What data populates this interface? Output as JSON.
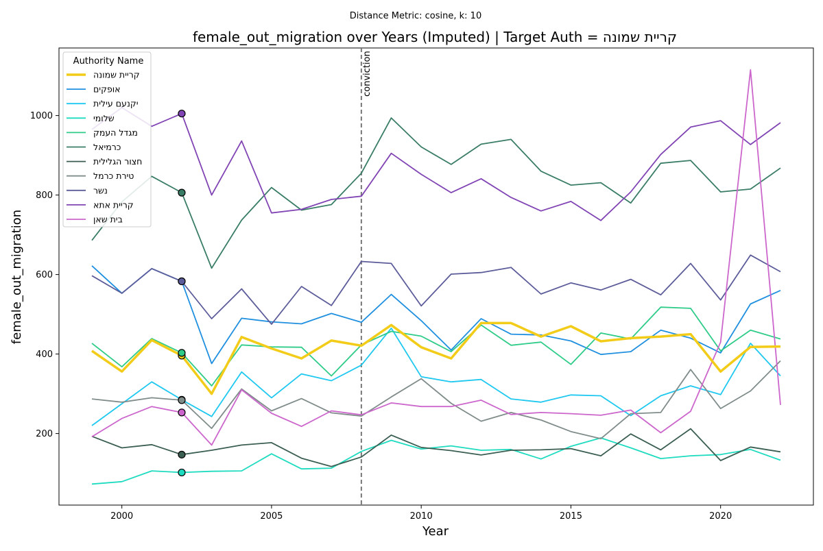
{
  "chart_data": {
    "type": "line",
    "suptitle": "Distance Metric: cosine, k: 10",
    "title": "female_out_migration over Years (Imputed) | Target Auth = קריית שמונה",
    "xlabel": "Year",
    "ylabel": "female_out_migration",
    "xlim": [
      1997.9,
      2023.1
    ],
    "ylim": [
      20,
      1170
    ],
    "xticks": [
      2000,
      2005,
      2010,
      2015,
      2020
    ],
    "yticks": [
      200,
      400,
      600,
      800,
      1000
    ],
    "grid": false,
    "legend": {
      "title": "Authority Name",
      "placement": "upper-left"
    },
    "annotation": {
      "x": 2008,
      "label": "conviction",
      "style": "dashed",
      "color": "#777777"
    },
    "x": [
      1999,
      2000,
      2001,
      2002,
      2003,
      2004,
      2005,
      2006,
      2007,
      2008,
      2009,
      2010,
      2011,
      2012,
      2013,
      2014,
      2015,
      2016,
      2017,
      2018,
      2019,
      2020,
      2021,
      2022
    ],
    "series": [
      {
        "name": "קריית שמונה",
        "color": "#f2cc19",
        "target": true,
        "values": [
          408,
          356,
          435,
          396,
          300,
          443,
          414,
          389,
          434,
          421,
          473,
          417,
          389,
          478,
          478,
          444,
          470,
          432,
          440,
          444,
          450,
          356,
          418,
          419
        ]
      },
      {
        "name": "אופקים",
        "color": "#1f8fe0",
        "values": [
          622,
          553,
          615,
          583,
          376,
          490,
          481,
          476,
          502,
          480,
          550,
          484,
          410,
          489,
          450,
          448,
          433,
          399,
          406,
          460,
          440,
          403,
          526,
          560
        ]
      },
      {
        "name": "יקנעם עילית",
        "color": "#1ec8f0",
        "values": [
          220,
          275,
          330,
          285,
          243,
          355,
          290,
          350,
          333,
          372,
          465,
          343,
          330,
          336,
          287,
          279,
          297,
          295,
          245,
          295,
          320,
          298,
          427,
          345
        ]
      },
      {
        "name": "שלומי",
        "color": "#1ddbbf",
        "values": [
          73,
          79,
          106,
          102,
          105,
          106,
          149,
          111,
          113,
          155,
          183,
          161,
          169,
          158,
          160,
          136,
          168,
          189,
          164,
          137,
          144,
          147,
          160,
          133
        ]
      },
      {
        "name": "מגדל העמק",
        "color": "#2ecc88",
        "values": [
          427,
          368,
          439,
          403,
          320,
          423,
          418,
          417,
          345,
          423,
          457,
          445,
          406,
          473,
          422,
          430,
          374,
          453,
          438,
          518,
          515,
          408,
          460,
          438
        ]
      },
      {
        "name": "כרמיאל",
        "color": "#3a7d66",
        "values": [
          686,
          783,
          847,
          806,
          616,
          737,
          819,
          762,
          776,
          855,
          994,
          921,
          877,
          928,
          940,
          860,
          825,
          831,
          780,
          880,
          887,
          808,
          815,
          868
        ]
      },
      {
        "name": "חצור הגלילית",
        "color": "#3b5e52",
        "values": [
          193,
          164,
          172,
          147,
          158,
          171,
          177,
          138,
          117,
          141,
          196,
          165,
          157,
          146,
          158,
          159,
          162,
          144,
          199,
          159,
          212,
          132,
          166,
          154
        ]
      },
      {
        "name": "טירת כרמל",
        "color": "#7f8c8a",
        "values": [
          287,
          279,
          290,
          284,
          213,
          312,
          257,
          288,
          252,
          244,
          292,
          338,
          276,
          231,
          253,
          234,
          205,
          187,
          250,
          253,
          361,
          263,
          307,
          383
        ]
      },
      {
        "name": "נשר",
        "color": "#5c5c9a",
        "values": [
          597,
          553,
          615,
          583,
          489,
          564,
          475,
          570,
          522,
          633,
          628,
          521,
          601,
          605,
          618,
          551,
          579,
          561,
          588,
          549,
          628,
          536,
          649,
          607
        ]
      },
      {
        "name": "קריית אתא",
        "color": "#8044b4",
        "values": [
          965,
          1020,
          973,
          1005,
          800,
          936,
          755,
          764,
          789,
          797,
          905,
          852,
          806,
          841,
          794,
          760,
          784,
          736,
          808,
          902,
          971,
          987,
          927,
          982
        ]
      },
      {
        "name": "בית שאן",
        "color": "#cc66cc",
        "values": [
          192,
          238,
          268,
          253,
          171,
          310,
          251,
          218,
          257,
          247,
          277,
          268,
          268,
          284,
          248,
          253,
          250,
          246,
          259,
          202,
          256,
          430,
          1115,
          272
        ]
      }
    ],
    "imputed_markers": {
      "x": 2002
    }
  }
}
